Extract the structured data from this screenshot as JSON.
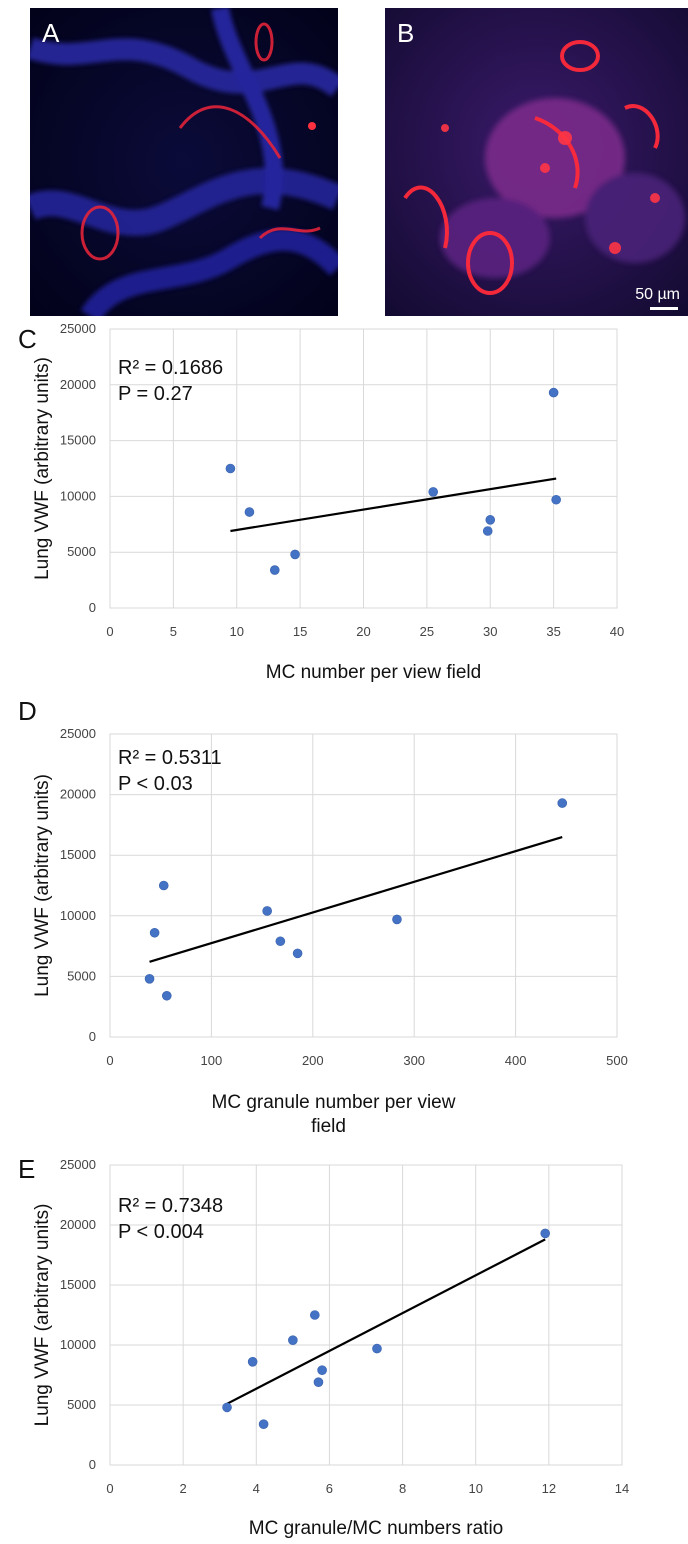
{
  "panels": {
    "a": {
      "letter": "A"
    },
    "b": {
      "letter": "B",
      "scale_bar": "50 µm"
    }
  },
  "chart_data": [
    {
      "type": "scatter",
      "letter": "C",
      "xlabel": "MC number per view field",
      "ylabel": "Lung VWF (arbitrary units)",
      "xlim": [
        0,
        40
      ],
      "ylim": [
        0,
        25000
      ],
      "xticks": [
        0,
        5,
        10,
        15,
        20,
        25,
        30,
        35,
        40
      ],
      "yticks": [
        0,
        5000,
        10000,
        15000,
        20000,
        25000
      ],
      "r2": "R² = 0.1686",
      "p": "P = 0.27",
      "grid": true,
      "marker_color": "#4472C4",
      "points": [
        [
          9.5,
          12500
        ],
        [
          11,
          8600
        ],
        [
          13,
          3400
        ],
        [
          14.6,
          4800
        ],
        [
          25.5,
          10400
        ],
        [
          29.8,
          6900
        ],
        [
          30,
          7900
        ],
        [
          35,
          19300
        ],
        [
          35.2,
          9700
        ]
      ],
      "trendline": [
        [
          9.5,
          6900
        ],
        [
          35.2,
          11600
        ]
      ]
    },
    {
      "type": "scatter",
      "letter": "D",
      "xlabel": "MC granule number per view field",
      "ylabel": "Lung VWF (arbitrary units)",
      "xlim": [
        0,
        500
      ],
      "ylim": [
        0,
        25000
      ],
      "xticks": [
        0,
        100,
        200,
        300,
        400,
        500
      ],
      "yticks": [
        0,
        5000,
        10000,
        15000,
        20000,
        25000
      ],
      "r2": "R² = 0.5311",
      "p": "P < 0.03",
      "grid": true,
      "marker_color": "#4472C4",
      "points": [
        [
          39,
          4800
        ],
        [
          44,
          8600
        ],
        [
          53,
          12500
        ],
        [
          56,
          3400
        ],
        [
          155,
          10400
        ],
        [
          168,
          7900
        ],
        [
          185,
          6900
        ],
        [
          283,
          9700
        ],
        [
          446,
          19300
        ]
      ],
      "trendline": [
        [
          39,
          6200
        ],
        [
          446,
          16500
        ]
      ]
    },
    {
      "type": "scatter",
      "letter": "E",
      "xlabel": "MC granule/MC numbers ratio",
      "ylabel": "Lung VWF (arbitrary units)",
      "xlim": [
        0,
        14
      ],
      "ylim": [
        0,
        25000
      ],
      "xticks": [
        0,
        2,
        4,
        6,
        8,
        10,
        12,
        14
      ],
      "yticks": [
        0,
        5000,
        10000,
        15000,
        20000,
        25000
      ],
      "r2": "R² = 0.7348",
      "p": "P < 0.004",
      "grid": true,
      "marker_color": "#4472C4",
      "points": [
        [
          3.2,
          4800
        ],
        [
          3.9,
          8600
        ],
        [
          4.2,
          3400
        ],
        [
          5.0,
          10400
        ],
        [
          5.6,
          12500
        ],
        [
          5.7,
          6900
        ],
        [
          5.8,
          7900
        ],
        [
          7.3,
          9700
        ],
        [
          11.9,
          19300
        ]
      ],
      "trendline": [
        [
          3.2,
          5100
        ],
        [
          11.9,
          18800
        ]
      ]
    }
  ]
}
